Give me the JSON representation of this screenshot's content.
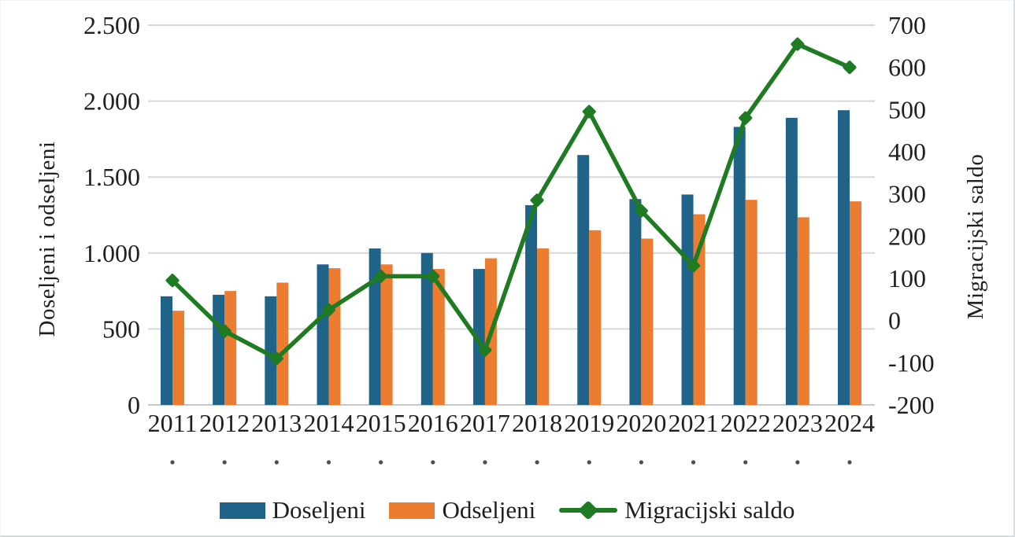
{
  "chart_data": {
    "type": "combo-bar-line",
    "categories": [
      "2011",
      "2012",
      "2013",
      "2014",
      "2015",
      "2016",
      "2017",
      "2018",
      "2019",
      "2020",
      "2021",
      "2022",
      "2023",
      "2024"
    ],
    "category_sub_labels": [
      ".",
      ".",
      ".",
      ".",
      ".",
      ".",
      ".",
      ".",
      ".",
      ".",
      ".",
      ".",
      ".",
      "."
    ],
    "series": [
      {
        "name": "Doseljeni",
        "type": "bar",
        "axis": "left",
        "color": "#1F6488",
        "values": [
          715,
          725,
          715,
          925,
          1030,
          1000,
          895,
          1315,
          1645,
          1355,
          1385,
          1830,
          1890,
          1940
        ]
      },
      {
        "name": "Odseljeni",
        "type": "bar",
        "axis": "left",
        "color": "#EC7C30",
        "values": [
          620,
          750,
          805,
          900,
          925,
          895,
          965,
          1030,
          1150,
          1095,
          1255,
          1350,
          1235,
          1340
        ]
      },
      {
        "name": "Migracijski saldo",
        "type": "line",
        "axis": "right",
        "color": "#1F7B21",
        "marker": "diamond",
        "values": [
          95,
          -25,
          -90,
          25,
          105,
          105,
          -70,
          285,
          495,
          260,
          130,
          480,
          655,
          600
        ]
      }
    ],
    "left_axis": {
      "title": "Doseljeni i odseljeni",
      "min": 0,
      "max": 2500,
      "tick_values": [
        0,
        500,
        1000,
        1500,
        2000,
        2500
      ],
      "tick_labels": [
        "0",
        "500",
        "1.000",
        "1.500",
        "2.000",
        "2.500"
      ]
    },
    "right_axis": {
      "title": "Migracijski saldo",
      "min": -200,
      "max": 700,
      "tick_values": [
        -200,
        -100,
        0,
        100,
        200,
        300,
        400,
        500,
        600,
        700
      ],
      "tick_labels": [
        "-200",
        "-100",
        "0",
        "100",
        "200",
        "300",
        "400",
        "500",
        "600",
        "700"
      ]
    },
    "grid": "horizontal",
    "legend_position": "bottom"
  },
  "legend": {
    "doseljeni": "Doseljeni",
    "odseljeni": "Odseljeni",
    "saldo": "Migracijski saldo"
  },
  "colors": {
    "bar_doseljeni": "#1F6488",
    "bar_odseljeni": "#EC7C30",
    "line_saldo": "#1F7B21",
    "gridline": "#D7D7D7",
    "baseline": "#C4C9CD",
    "text": "#1F1F1F",
    "dot_row": "#4D4D4D"
  }
}
